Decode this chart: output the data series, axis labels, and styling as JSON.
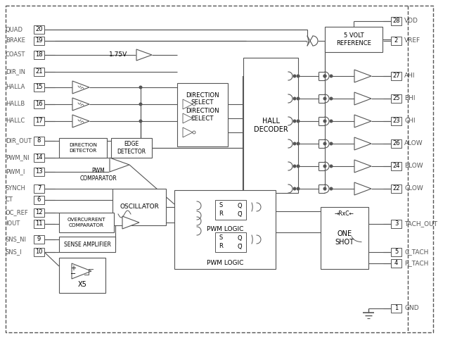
{
  "fig_w": 6.4,
  "fig_h": 4.8,
  "dpi": 100,
  "bg": "#ffffff",
  "lc": "#555555",
  "tc": "#000000",
  "labelc": "#555555",
  "left_pins": [
    [
      "QUAD",
      "20",
      42
    ],
    [
      "BRAKE",
      "19",
      58
    ],
    [
      "COAST",
      "18",
      78
    ],
    [
      "DIR_IN",
      "21",
      102
    ],
    [
      "HALLA",
      "15",
      124
    ],
    [
      "HALLB",
      "16",
      148
    ],
    [
      "HALLC",
      "17",
      172
    ],
    [
      "DIR_OUT",
      "8",
      200
    ],
    [
      "PWM_NI",
      "14",
      224
    ],
    [
      "PWM_I",
      "13",
      244
    ],
    [
      "SYNCH",
      "7",
      268
    ],
    [
      "CT",
      "6",
      284
    ],
    [
      "OC_REF",
      "12",
      302
    ],
    [
      "IOUT",
      "11",
      318
    ],
    [
      "SNS_NI",
      "9",
      340
    ],
    [
      "SNS_I",
      "10",
      358
    ]
  ],
  "right_pins": [
    [
      "VDD",
      "28",
      30
    ],
    [
      "VREF",
      "2",
      58
    ],
    [
      "AHI",
      "27",
      108
    ],
    [
      "BHI",
      "25",
      140
    ],
    [
      "CHI",
      "23",
      172
    ],
    [
      "ALOW",
      "26",
      204
    ],
    [
      "BLOW",
      "24",
      236
    ],
    [
      "CLOW",
      "22",
      268
    ],
    [
      "TACH_OUT",
      "3",
      318
    ],
    [
      "C_TACH",
      "5",
      358
    ],
    [
      "R_TACH",
      "4",
      374
    ],
    [
      "GND",
      "1",
      438
    ]
  ]
}
